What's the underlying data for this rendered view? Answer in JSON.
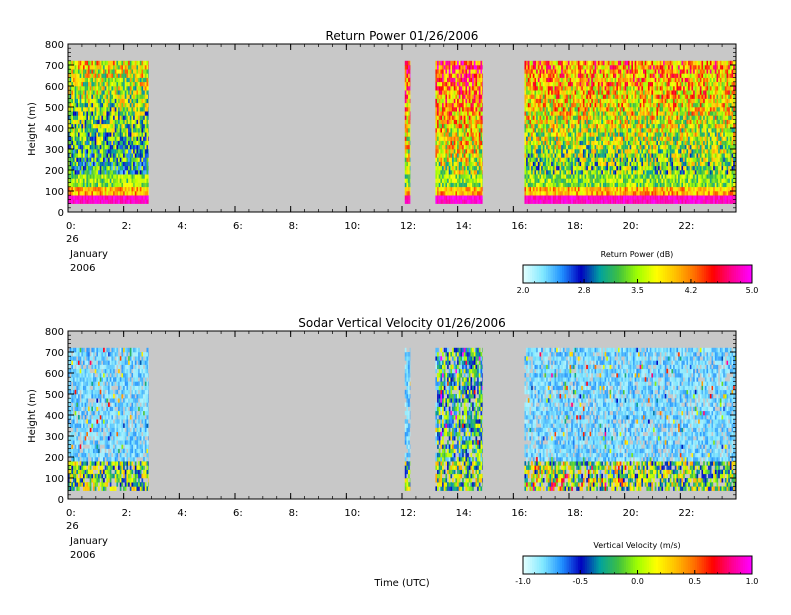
{
  "x_axis_title": "Time (UTC)",
  "chart_data": [
    {
      "type": "heatmap",
      "title": "Return Power 01/26/2006",
      "ylabel": "Height (m)",
      "xlabel": "",
      "ylim": [
        0,
        800
      ],
      "xlim": [
        0,
        24
      ],
      "y_ticks": [
        "0",
        "100",
        "200",
        "300",
        "400",
        "500",
        "600",
        "700",
        "800"
      ],
      "x_ticks": [
        "0:",
        "2:",
        "4:",
        "6:",
        "8:",
        "10:",
        "12:",
        "14:",
        "16:",
        "18:",
        "20:",
        "22:"
      ],
      "date_labels": [
        "26",
        "January",
        "2006"
      ],
      "background_color": "#c8c8c8",
      "data_height_range": [
        40,
        720
      ],
      "data_time_blocks": [
        [
          0,
          2.9
        ],
        [
          12.1,
          12.3
        ],
        [
          13.2,
          14.9
        ],
        [
          16.4,
          24
        ]
      ],
      "colorbar": {
        "label": "Return Power (dB)",
        "ticks": [
          "2.0",
          "2.8",
          "3.5",
          "4.2",
          "5.0"
        ],
        "range": [
          2.0,
          5.0
        ],
        "colors": [
          "#e0ffff",
          "#80e8ff",
          "#2090ff",
          "#0000c0",
          "#00a0a0",
          "#40c040",
          "#a0ff00",
          "#ffff00",
          "#ffc000",
          "#ff7000",
          "#ff0000",
          "#ff0090",
          "#ff00ff"
        ]
      }
    },
    {
      "type": "heatmap",
      "title": "Sodar Vertical Velocity 01/26/2006",
      "ylabel": "Height (m)",
      "xlabel": "Time (UTC)",
      "ylim": [
        0,
        800
      ],
      "xlim": [
        0,
        24
      ],
      "y_ticks": [
        "0",
        "100",
        "200",
        "300",
        "400",
        "500",
        "600",
        "700",
        "800"
      ],
      "x_ticks": [
        "0:",
        "2:",
        "4:",
        "6:",
        "8:",
        "10:",
        "12:",
        "14:",
        "16:",
        "18:",
        "20:",
        "22:"
      ],
      "date_labels": [
        "26",
        "January",
        "2006"
      ],
      "background_color": "#c8c8c8",
      "data_height_range": [
        40,
        720
      ],
      "data_time_blocks": [
        [
          0,
          2.9
        ],
        [
          12.1,
          12.3
        ],
        [
          13.2,
          14.9
        ],
        [
          16.4,
          24
        ]
      ],
      "colorbar": {
        "label": "Vertical Velocity (m/s)",
        "ticks": [
          "-1.0",
          "-0.5",
          "0.0",
          "0.5",
          "1.0"
        ],
        "range": [
          -1.0,
          1.0
        ],
        "colors": [
          "#e0ffff",
          "#80e8ff",
          "#2090ff",
          "#0000c0",
          "#00a0a0",
          "#40c040",
          "#a0ff00",
          "#ffff00",
          "#ffc000",
          "#ff7000",
          "#ff0000",
          "#ff0090",
          "#ff00ff"
        ]
      }
    }
  ]
}
